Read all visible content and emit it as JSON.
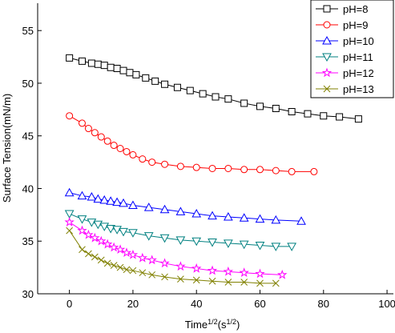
{
  "chart_data": {
    "type": "line",
    "y_label": "Surface Tension(mN/m)",
    "x_label": [
      "Time",
      "1/2",
      "(s",
      "1/2",
      ")"
    ],
    "xlim": [
      -10,
      102
    ],
    "xticks": [
      0,
      20,
      40,
      60,
      80,
      100
    ],
    "ylim": [
      30,
      57.6
    ],
    "yticks": [
      30,
      35,
      40,
      45,
      50,
      55
    ],
    "legend": "top-right",
    "series": [
      {
        "name": "pH=8",
        "color": "#000000",
        "marker": "square",
        "x": [
          0,
          4,
          7,
          9,
          11,
          13,
          15,
          17,
          19,
          21,
          24,
          27,
          30,
          34,
          38,
          42,
          46,
          50,
          55,
          60,
          65,
          70,
          75,
          80,
          85,
          91
        ],
        "values": [
          52.4,
          52.1,
          51.9,
          51.8,
          51.7,
          51.5,
          51.4,
          51.2,
          51.0,
          50.8,
          50.5,
          50.2,
          49.9,
          49.6,
          49.3,
          49.0,
          48.7,
          48.5,
          48.1,
          47.8,
          47.6,
          47.3,
          47.1,
          46.9,
          46.8,
          46.6
        ]
      },
      {
        "name": "pH=9",
        "color": "#ff0000",
        "marker": "circle",
        "x": [
          0,
          4,
          6,
          8,
          10,
          12,
          14,
          16,
          18,
          20,
          23,
          26,
          30,
          35,
          40,
          45,
          50,
          55,
          60,
          65,
          70,
          77
        ],
        "values": [
          46.9,
          46.2,
          45.7,
          45.3,
          44.9,
          44.5,
          44.1,
          43.8,
          43.5,
          43.2,
          42.8,
          42.5,
          42.3,
          42.1,
          42.0,
          41.9,
          41.9,
          41.8,
          41.8,
          41.7,
          41.6,
          41.6
        ]
      },
      {
        "name": "pH=10",
        "color": "#0000ff",
        "marker": "triangle-up",
        "x": [
          0,
          4,
          7,
          9,
          11,
          13,
          15,
          17,
          20,
          25,
          30,
          35,
          40,
          45,
          50,
          55,
          60,
          65,
          73
        ],
        "values": [
          39.6,
          39.3,
          39.2,
          39.0,
          38.9,
          38.8,
          38.7,
          38.6,
          38.4,
          38.2,
          38.0,
          37.8,
          37.6,
          37.4,
          37.3,
          37.2,
          37.1,
          37.0,
          36.9
        ]
      },
      {
        "name": "pH=11",
        "color": "#008080",
        "marker": "triangle-down",
        "x": [
          0,
          4,
          7,
          9,
          11,
          13,
          15,
          17,
          20,
          25,
          30,
          35,
          40,
          45,
          50,
          55,
          60,
          65,
          70
        ],
        "values": [
          37.6,
          37.1,
          36.8,
          36.6,
          36.4,
          36.2,
          36.1,
          35.9,
          35.8,
          35.5,
          35.3,
          35.1,
          35.0,
          34.9,
          34.8,
          34.7,
          34.6,
          34.5,
          34.5
        ]
      },
      {
        "name": "pH=12",
        "color": "#ff00ff",
        "marker": "star",
        "x": [
          0,
          4,
          6,
          8,
          10,
          12,
          14,
          16,
          18,
          20,
          23,
          26,
          30,
          35,
          40,
          45,
          50,
          55,
          60,
          67
        ],
        "values": [
          36.8,
          36.0,
          35.6,
          35.3,
          35.0,
          34.7,
          34.4,
          34.2,
          33.9,
          33.7,
          33.4,
          33.2,
          32.9,
          32.6,
          32.4,
          32.2,
          32.1,
          32.0,
          31.9,
          31.8
        ]
      },
      {
        "name": "pH=13",
        "color": "#808000",
        "marker": "x",
        "x": [
          0,
          4,
          6,
          8,
          10,
          12,
          14,
          16,
          18,
          20,
          23,
          26,
          30,
          35,
          40,
          45,
          50,
          55,
          60,
          65
        ],
        "values": [
          36.0,
          34.2,
          33.8,
          33.5,
          33.2,
          32.9,
          32.7,
          32.5,
          32.3,
          32.2,
          32.0,
          31.8,
          31.6,
          31.4,
          31.3,
          31.2,
          31.1,
          31.1,
          31.0,
          31.0
        ]
      }
    ]
  }
}
